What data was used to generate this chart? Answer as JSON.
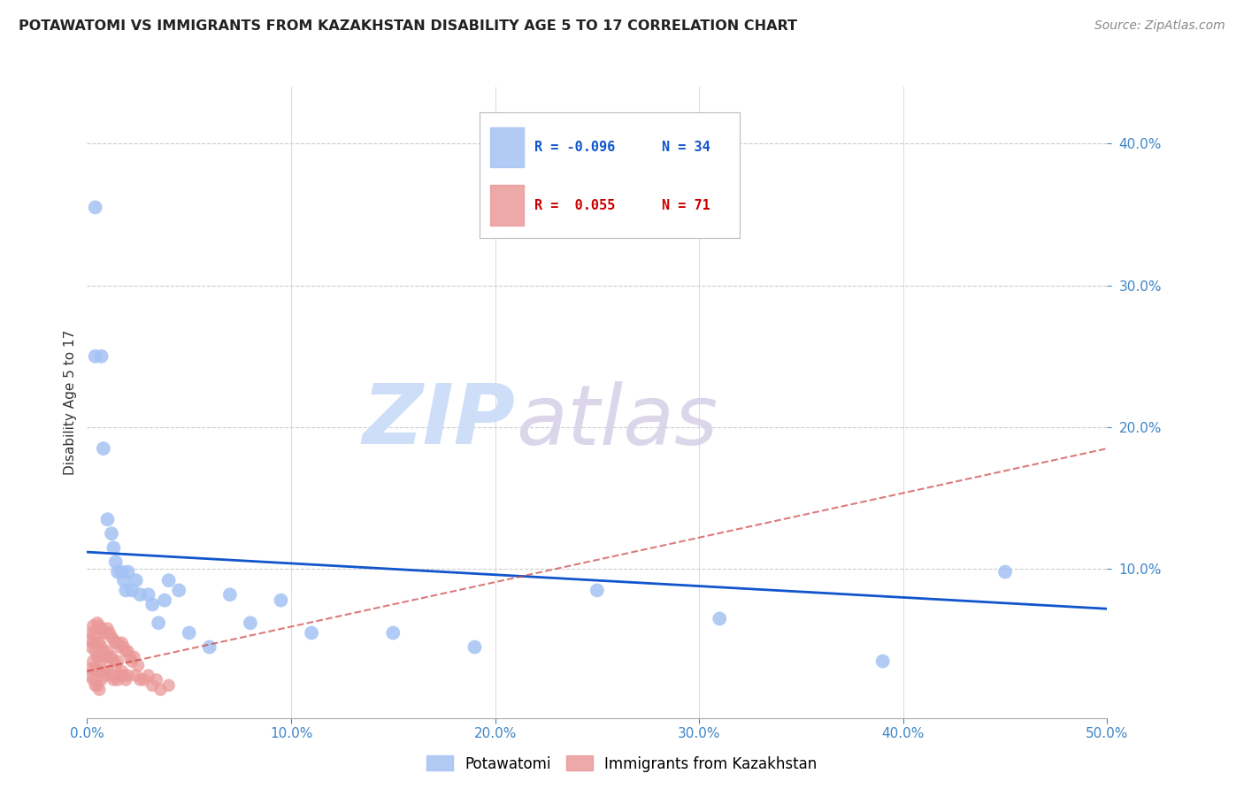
{
  "title": "POTAWATOMI VS IMMIGRANTS FROM KAZAKHSTAN DISABILITY AGE 5 TO 17 CORRELATION CHART",
  "source": "Source: ZipAtlas.com",
  "ylabel": "Disability Age 5 to 17",
  "xlim": [
    0.0,
    0.5
  ],
  "ylim": [
    -0.005,
    0.44
  ],
  "xticks": [
    0.0,
    0.1,
    0.2,
    0.3,
    0.4,
    0.5
  ],
  "yticks": [
    0.1,
    0.2,
    0.3,
    0.4
  ],
  "blue_color": "#a4c2f4",
  "pink_color": "#ea9999",
  "blue_line_color": "#1155cc",
  "pink_line_color": "#cc4444",
  "background_color": "#ffffff",
  "grid_color": "#cccccc",
  "watermark_zip_color": "#c9daf8",
  "watermark_atlas_color": "#d9d2e9",
  "potawatomi_x": [
    0.004,
    0.004,
    0.007,
    0.008,
    0.01,
    0.012,
    0.013,
    0.014,
    0.015,
    0.017,
    0.018,
    0.019,
    0.02,
    0.022,
    0.024,
    0.026,
    0.03,
    0.032,
    0.035,
    0.038,
    0.04,
    0.045,
    0.05,
    0.06,
    0.07,
    0.08,
    0.095,
    0.11,
    0.15,
    0.19,
    0.25,
    0.31,
    0.39,
    0.45
  ],
  "potawatomi_y": [
    0.355,
    0.25,
    0.25,
    0.185,
    0.135,
    0.125,
    0.115,
    0.105,
    0.098,
    0.098,
    0.092,
    0.085,
    0.098,
    0.085,
    0.092,
    0.082,
    0.082,
    0.075,
    0.062,
    0.078,
    0.092,
    0.085,
    0.055,
    0.045,
    0.082,
    0.062,
    0.078,
    0.055,
    0.055,
    0.045,
    0.085,
    0.065,
    0.035,
    0.098
  ],
  "kazakhstan_x": [
    0.001,
    0.001,
    0.002,
    0.002,
    0.002,
    0.003,
    0.003,
    0.003,
    0.003,
    0.004,
    0.004,
    0.004,
    0.004,
    0.005,
    0.005,
    0.005,
    0.005,
    0.005,
    0.006,
    0.006,
    0.006,
    0.006,
    0.006,
    0.007,
    0.007,
    0.007,
    0.007,
    0.008,
    0.008,
    0.008,
    0.009,
    0.009,
    0.009,
    0.01,
    0.01,
    0.01,
    0.011,
    0.011,
    0.012,
    0.012,
    0.012,
    0.013,
    0.013,
    0.013,
    0.014,
    0.014,
    0.015,
    0.015,
    0.015,
    0.016,
    0.016,
    0.017,
    0.017,
    0.018,
    0.018,
    0.019,
    0.019,
    0.02,
    0.02,
    0.021,
    0.022,
    0.023,
    0.024,
    0.025,
    0.026,
    0.028,
    0.03,
    0.032,
    0.034,
    0.036,
    0.04
  ],
  "kazakhstan_y": [
    0.05,
    0.025,
    0.055,
    0.045,
    0.03,
    0.06,
    0.048,
    0.035,
    0.022,
    0.055,
    0.042,
    0.03,
    0.018,
    0.062,
    0.048,
    0.038,
    0.028,
    0.018,
    0.06,
    0.048,
    0.038,
    0.028,
    0.015,
    0.058,
    0.045,
    0.035,
    0.022,
    0.055,
    0.042,
    0.028,
    0.055,
    0.038,
    0.025,
    0.058,
    0.042,
    0.028,
    0.055,
    0.038,
    0.052,
    0.038,
    0.025,
    0.05,
    0.035,
    0.022,
    0.048,
    0.032,
    0.048,
    0.035,
    0.022,
    0.045,
    0.025,
    0.048,
    0.028,
    0.045,
    0.025,
    0.042,
    0.022,
    0.042,
    0.025,
    0.038,
    0.035,
    0.038,
    0.025,
    0.032,
    0.022,
    0.022,
    0.025,
    0.018,
    0.022,
    0.015,
    0.018
  ],
  "blue_trend_x0": 0.0,
  "blue_trend_y0": 0.112,
  "blue_trend_x1": 0.5,
  "blue_trend_y1": 0.072,
  "pink_trend_x0": 0.0,
  "pink_trend_y0": 0.028,
  "pink_trend_x1": 0.5,
  "pink_trend_y1": 0.185
}
